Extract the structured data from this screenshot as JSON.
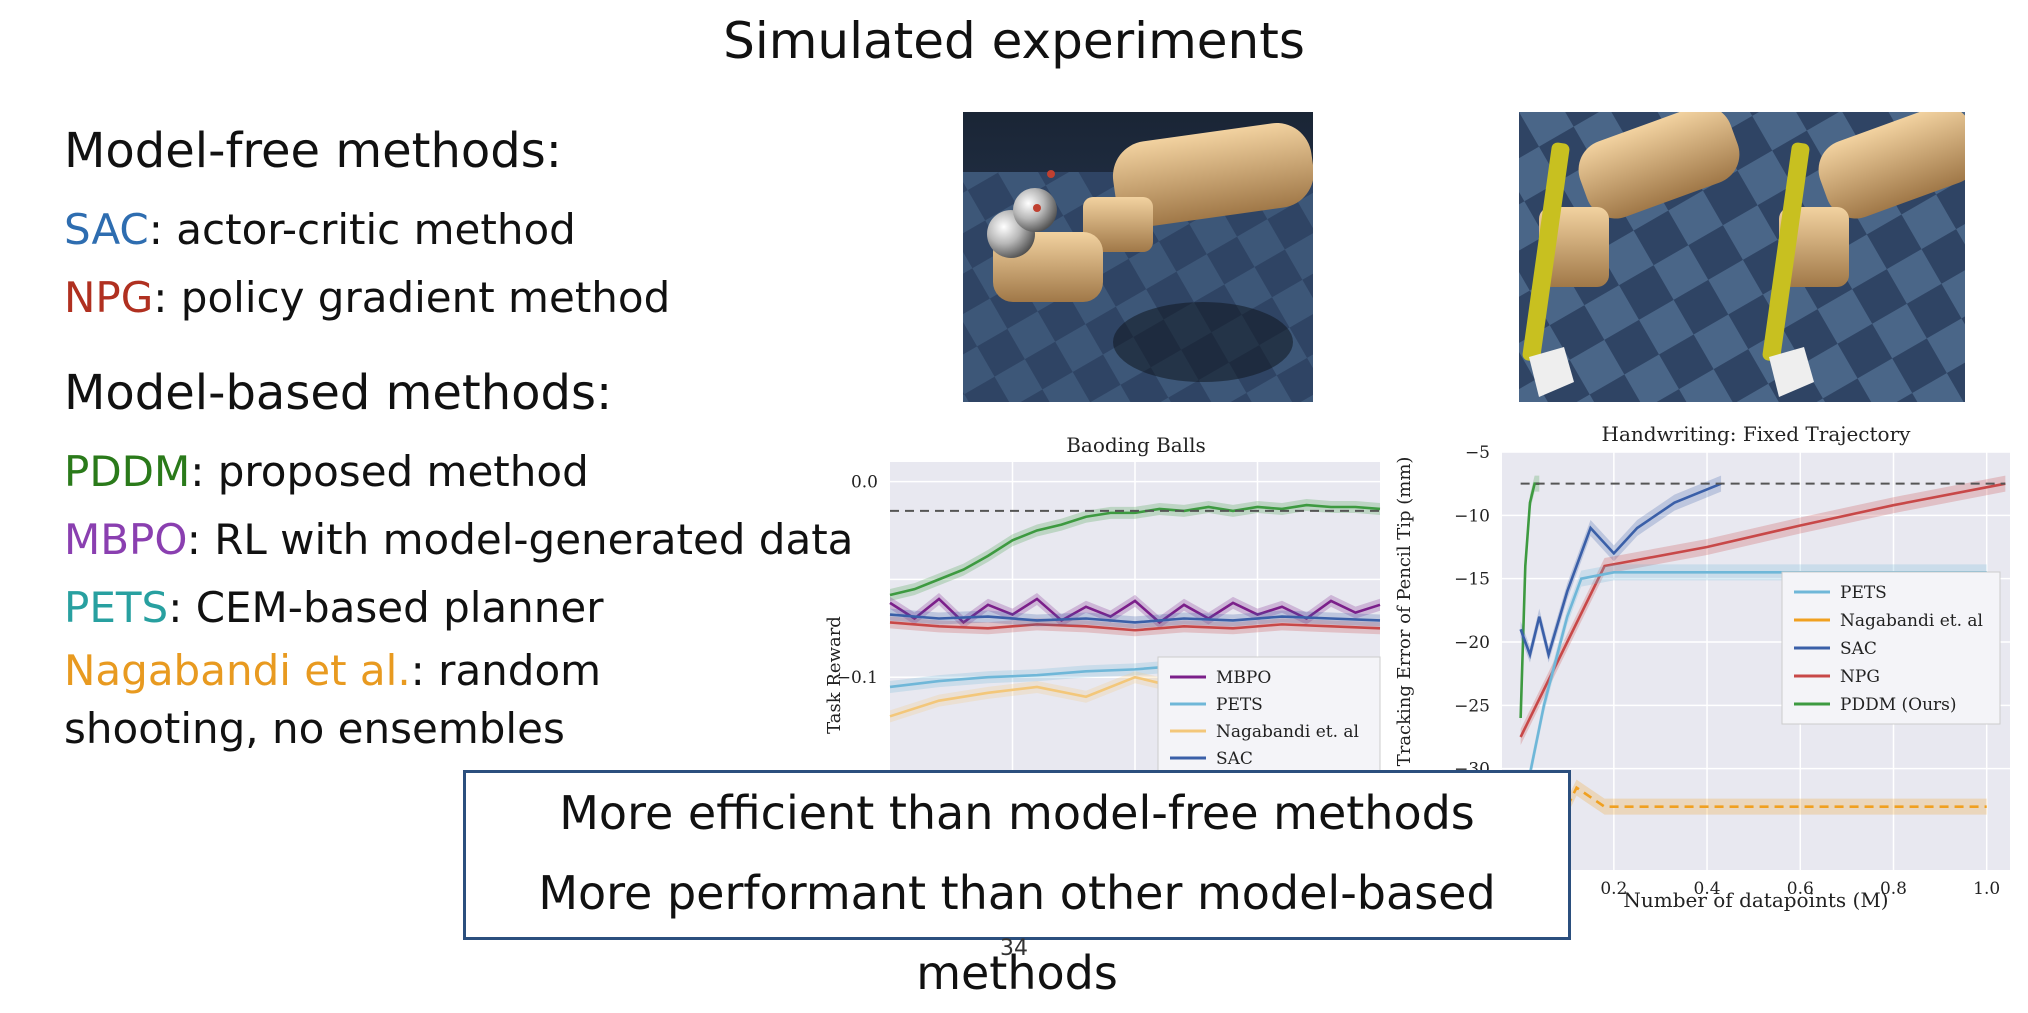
{
  "slide": {
    "title": "Simulated experiments",
    "page_number": "34"
  },
  "model_free": {
    "heading": "Model-free methods:",
    "items": [
      {
        "name": "SAC",
        "desc": ": actor-critic method",
        "color": "#2e6db0"
      },
      {
        "name": "NPG",
        "desc": ": policy gradient method",
        "color": "#b03020"
      }
    ]
  },
  "model_based": {
    "heading": "Model-based methods:",
    "items": [
      {
        "name": "PDDM",
        "desc": ": proposed method",
        "color": "#2a7a1a"
      },
      {
        "name": "MBPO",
        "desc": ": RL with model-generated data",
        "color": "#8a3fb0"
      },
      {
        "name": "PETS",
        "desc": ": CEM-based planner",
        "color": "#28a0a0"
      },
      {
        "name": "Nagabandi et al.",
        "desc": ": random shooting, no ensembles",
        "color": "#e89a20"
      }
    ]
  },
  "callout": {
    "line1": "More efficient than model-free methods",
    "line2": "More performant than other model-based methods"
  },
  "chart_data": [
    {
      "type": "line",
      "title": "Baoding Balls",
      "xlabel": "",
      "ylabel": "Task Reward",
      "ytick_labels": [
        "0.0",
        "−0.1"
      ],
      "ylim": [
        -0.15,
        0.01
      ],
      "grid": true,
      "legend_position": "bottom-right",
      "legend": [
        "MBPO",
        "PETS",
        "Nagabandi et. al",
        "SAC"
      ],
      "colors": {
        "MBPO": "#7b1f8a",
        "PETS": "#6fb7d8",
        "Nagabandi et. al": "#f3c77a",
        "SAC": "#3a5fa8",
        "PDDM": "#3d9a40",
        "NPG": "#c84848"
      },
      "series": [
        {
          "name": "PDDM",
          "x": [
            0,
            0.05,
            0.1,
            0.15,
            0.2,
            0.25,
            0.3,
            0.35,
            0.4,
            0.45,
            0.5,
            0.55,
            0.6,
            0.65,
            0.7,
            0.75,
            0.8,
            0.85,
            0.9,
            0.95,
            1.0
          ],
          "y": [
            -0.058,
            -0.055,
            -0.05,
            -0.045,
            -0.038,
            -0.03,
            -0.025,
            -0.022,
            -0.018,
            -0.016,
            -0.016,
            -0.014,
            -0.015,
            -0.013,
            -0.015,
            -0.013,
            -0.014,
            -0.012,
            -0.013,
            -0.013,
            -0.014
          ]
        },
        {
          "name": "MBPO",
          "x": [
            0,
            0.05,
            0.1,
            0.15,
            0.2,
            0.25,
            0.3,
            0.35,
            0.4,
            0.45,
            0.5,
            0.55,
            0.6,
            0.65,
            0.7,
            0.75,
            0.8,
            0.85,
            0.9,
            0.95,
            1.0
          ],
          "y": [
            -0.062,
            -0.07,
            -0.06,
            -0.072,
            -0.063,
            -0.068,
            -0.06,
            -0.071,
            -0.064,
            -0.069,
            -0.061,
            -0.072,
            -0.063,
            -0.07,
            -0.062,
            -0.068,
            -0.064,
            -0.07,
            -0.061,
            -0.067,
            -0.063
          ]
        },
        {
          "name": "NPG",
          "x": [
            0,
            0.1,
            0.2,
            0.3,
            0.4,
            0.5,
            0.6,
            0.7,
            0.8,
            0.9,
            1.0
          ],
          "y": [
            -0.072,
            -0.074,
            -0.075,
            -0.073,
            -0.074,
            -0.076,
            -0.074,
            -0.075,
            -0.073,
            -0.074,
            -0.075
          ]
        },
        {
          "name": "SAC",
          "x": [
            0,
            0.1,
            0.2,
            0.3,
            0.4,
            0.5,
            0.6,
            0.7,
            0.8,
            0.9,
            1.0
          ],
          "y": [
            -0.068,
            -0.07,
            -0.069,
            -0.071,
            -0.07,
            -0.072,
            -0.07,
            -0.071,
            -0.069,
            -0.07,
            -0.071
          ]
        },
        {
          "name": "PETS",
          "x": [
            0,
            0.1,
            0.2,
            0.3,
            0.4,
            0.5,
            0.6,
            0.7
          ],
          "y": [
            -0.105,
            -0.102,
            -0.1,
            -0.099,
            -0.097,
            -0.096,
            -0.094,
            -0.093
          ]
        },
        {
          "name": "Nagabandi et. al",
          "x": [
            0,
            0.1,
            0.2,
            0.3,
            0.4,
            0.5,
            0.6,
            0.7,
            0.8,
            0.9,
            1.0
          ],
          "y": [
            -0.12,
            -0.112,
            -0.108,
            -0.105,
            -0.11,
            -0.1,
            -0.106,
            -0.098,
            -0.104,
            -0.1,
            -0.102
          ]
        },
        {
          "name": "target",
          "x": [
            0,
            1.0
          ],
          "y": [
            -0.015,
            -0.015
          ]
        }
      ]
    },
    {
      "type": "line",
      "title": "Handwriting: Fixed Trajectory",
      "xlabel": "Number of datapoints (M)",
      "ylabel": "Mean Tracking Error of Pencil Tip (mm)",
      "xticks": [
        0.2,
        0.4,
        0.6,
        0.8,
        1.0
      ],
      "xtick_labels": [
        "0.2",
        "0.4",
        "0.6",
        "0.8",
        "1.0"
      ],
      "yticks": [
        -5,
        -10,
        -15,
        -20,
        -25,
        -30
      ],
      "ytick_labels": [
        "−5",
        "−10",
        "−15",
        "−20",
        "−25",
        "−30"
      ],
      "ylim": [
        -38,
        -5
      ],
      "xlim": [
        -0.04,
        1.05
      ],
      "grid": true,
      "legend_position": "center-right",
      "legend": [
        "PETS",
        "Nagabandi et. al",
        "SAC",
        "NPG",
        "PDDM (Ours)"
      ],
      "colors": {
        "PETS": "#6fb7d8",
        "Nagabandi et. al": "#f0a020",
        "SAC": "#3a5fa8",
        "NPG": "#c84848",
        "PDDM (Ours)": "#3d9a40"
      },
      "series": [
        {
          "name": "PDDM (Ours)",
          "x": [
            0.0,
            0.01,
            0.02,
            0.03,
            0.04
          ],
          "y": [
            -26,
            -14,
            -9,
            -7.5,
            -7.5
          ]
        },
        {
          "name": "SAC",
          "x": [
            0.0,
            0.02,
            0.04,
            0.06,
            0.1,
            0.15,
            0.2,
            0.25,
            0.33,
            0.43
          ],
          "y": [
            -19,
            -21,
            -18,
            -21,
            -16,
            -11,
            -13,
            -11,
            -9,
            -7.5
          ]
        },
        {
          "name": "NPG",
          "x": [
            0.0,
            0.1,
            0.18,
            0.4,
            0.6,
            0.8,
            1.04
          ],
          "y": [
            -27.5,
            -20,
            -14,
            -12.5,
            -10.8,
            -9.2,
            -7.5
          ]
        },
        {
          "name": "PETS",
          "x": [
            0.0,
            0.05,
            0.1,
            0.13,
            0.2,
            0.4,
            0.6,
            0.8,
            1.0
          ],
          "y": [
            -34,
            -25,
            -18,
            -15,
            -14.5,
            -14.5,
            -14.5,
            -14.5,
            -14.5
          ]
        },
        {
          "name": "Nagabandi et. al",
          "x": [
            0.1,
            0.12,
            0.14,
            0.18,
            0.4,
            0.6,
            0.8,
            1.0
          ],
          "y": [
            -33,
            -31.5,
            -32,
            -33,
            -33,
            -33,
            -33,
            -33
          ]
        },
        {
          "name": "target",
          "x": [
            0.0,
            1.04
          ],
          "y": [
            -7.5,
            -7.5
          ]
        }
      ]
    }
  ]
}
